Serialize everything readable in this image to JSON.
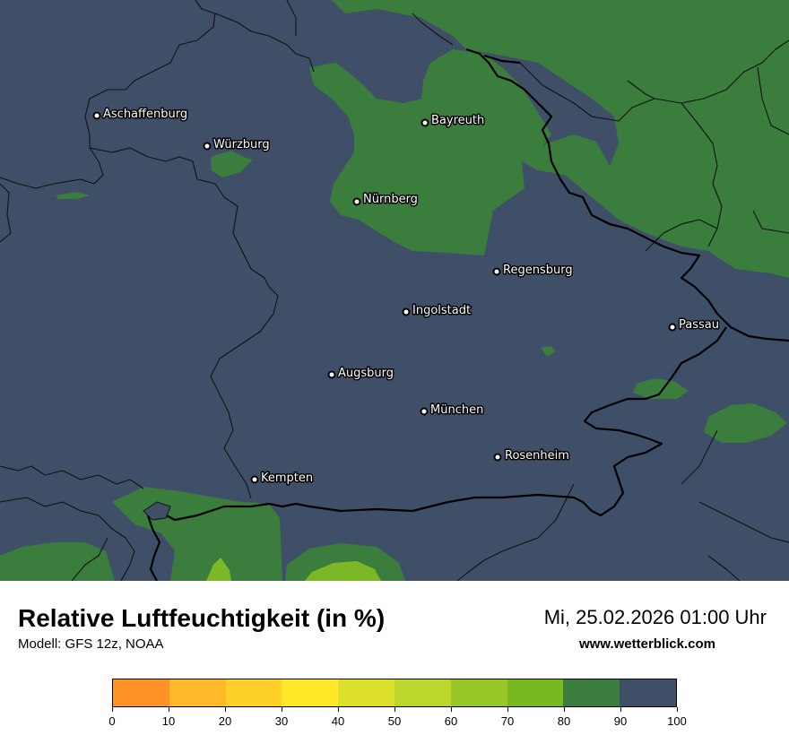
{
  "map": {
    "background_color": "#404f68",
    "humidity_colors": {
      "80-90": "#3a7d3c",
      "70-80": "#7ab828",
      "90-100": "#404f68"
    },
    "cities": [
      {
        "name": "Aschaffenburg"
      },
      {
        "name": "Würzburg"
      },
      {
        "name": "Bayreuth"
      },
      {
        "name": "Nürnberg"
      },
      {
        "name": "Regensburg"
      },
      {
        "name": "Ingolstadt"
      },
      {
        "name": "Passau"
      },
      {
        "name": "Augsburg"
      },
      {
        "name": "München"
      },
      {
        "name": "Rosenheim"
      },
      {
        "name": "Kempten"
      }
    ]
  },
  "footer": {
    "title": "Relative Luftfeuchtigkeit (in %)",
    "model": "Modell: GFS 12z, NOAA",
    "datetime": "Mi, 25.02.2026 01:00 Uhr",
    "website": "www.wetterblick.com"
  },
  "legend": {
    "colors": [
      "#ff9328",
      "#ffb928",
      "#ffd028",
      "#ffe828",
      "#dde02a",
      "#bcd62c",
      "#98c828",
      "#78b820",
      "#3a7d3c",
      "#404f68"
    ],
    "ticks": [
      "0",
      "10",
      "20",
      "30",
      "40",
      "50",
      "60",
      "70",
      "80",
      "90",
      "100"
    ]
  }
}
